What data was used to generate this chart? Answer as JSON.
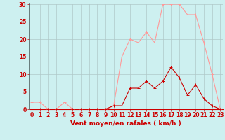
{
  "x": [
    0,
    1,
    2,
    3,
    4,
    5,
    6,
    7,
    8,
    9,
    10,
    11,
    12,
    13,
    14,
    15,
    16,
    17,
    18,
    19,
    20,
    21,
    22,
    23
  ],
  "y_rafales": [
    2,
    2,
    0,
    0,
    2,
    0,
    0,
    0,
    0,
    0,
    1,
    15,
    20,
    19,
    22,
    19,
    30,
    30,
    30,
    27,
    27,
    19,
    10,
    0
  ],
  "y_moyen": [
    0,
    0,
    0,
    0,
    0,
    0,
    0,
    0,
    0,
    0,
    1,
    1,
    6,
    6,
    8,
    6,
    8,
    12,
    9,
    4,
    7,
    3,
    1,
    0
  ],
  "bg_color": "#cdf0f0",
  "grid_color": "#b0c8c8",
  "line_color_rafales": "#ff9999",
  "line_color_moyen": "#cc0000",
  "marker_color_rafales": "#ff9999",
  "marker_color_moyen": "#cc0000",
  "xlabel": "Vent moyen/en rafales ( km/h )",
  "ylim": [
    0,
    30
  ],
  "yticks": [
    0,
    5,
    10,
    15,
    20,
    25,
    30
  ],
  "xticks": [
    0,
    1,
    2,
    3,
    4,
    5,
    6,
    7,
    8,
    9,
    10,
    11,
    12,
    13,
    14,
    15,
    16,
    17,
    18,
    19,
    20,
    21,
    22,
    23
  ],
  "xlabel_color": "#cc0000",
  "tick_color": "#cc0000",
  "axis_label_fontsize": 6.5,
  "tick_fontsize": 5.5
}
